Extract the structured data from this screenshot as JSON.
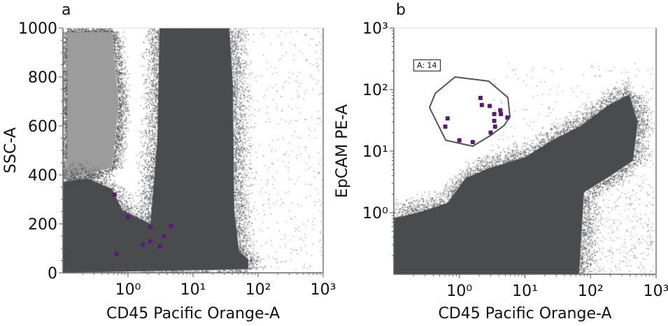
{
  "chart_data": [
    {
      "type": "scatter",
      "panel_label": "a",
      "xlabel": "CD45 Pacific Orange-A",
      "ylabel": "SSC-A",
      "x_scale": "log",
      "y_scale": "linear",
      "xlim": [
        0.1,
        1000
      ],
      "ylim": [
        0,
        1000
      ],
      "x_ticks": [
        {
          "value": 1,
          "label": "10⁰"
        },
        {
          "value": 10,
          "label": "10¹"
        },
        {
          "value": 100,
          "label": "10²"
        },
        {
          "value": 1000,
          "label": "10³"
        }
      ],
      "y_ticks": [
        {
          "value": 0,
          "label": "0"
        },
        {
          "value": 200,
          "label": "200"
        },
        {
          "value": 400,
          "label": "400"
        },
        {
          "value": 600,
          "label": "600"
        },
        {
          "value": 800,
          "label": "800"
        },
        {
          "value": 1000,
          "label": "1000"
        }
      ],
      "background_color": "#4a4b4d",
      "highlight_color": "#5c1a78",
      "highlighted_points": [
        {
          "x": 0.62,
          "y": 319
        },
        {
          "x": 1.0,
          "y": 227
        },
        {
          "x": 2.2,
          "y": 187
        },
        {
          "x": 4.6,
          "y": 190
        },
        {
          "x": 3.6,
          "y": 149
        },
        {
          "x": 2.2,
          "y": 129
        },
        {
          "x": 1.7,
          "y": 115
        },
        {
          "x": 3.1,
          "y": 109
        },
        {
          "x": 0.67,
          "y": 78
        }
      ]
    },
    {
      "type": "scatter",
      "panel_label": "b",
      "xlabel": "CD45 Pacific Orange-A",
      "ylabel": "EpCAM PE-A",
      "x_scale": "log",
      "y_scale": "log",
      "xlim": [
        0.1,
        1000
      ],
      "ylim": [
        0.1,
        1000
      ],
      "x_ticks": [
        {
          "value": 1,
          "label": "10⁰"
        },
        {
          "value": 10,
          "label": "10¹"
        },
        {
          "value": 100,
          "label": "10²"
        },
        {
          "value": 1000,
          "label": "10³"
        }
      ],
      "y_ticks": [
        {
          "value": 1,
          "label": "10⁰"
        },
        {
          "value": 10,
          "label": "10¹"
        },
        {
          "value": 100,
          "label": "10²"
        },
        {
          "value": 1000,
          "label": "10³"
        }
      ],
      "background_color": "#4a4b4d",
      "highlight_color": "#5c1a78",
      "gate": {
        "label": "A: 14",
        "polygon": [
          {
            "x": 0.35,
            "y": 51
          },
          {
            "x": 0.43,
            "y": 87
          },
          {
            "x": 0.86,
            "y": 160
          },
          {
            "x": 2.8,
            "y": 137
          },
          {
            "x": 5.5,
            "y": 74
          },
          {
            "x": 5.9,
            "y": 36
          },
          {
            "x": 4.8,
            "y": 26
          },
          {
            "x": 3.0,
            "y": 18
          },
          {
            "x": 1.6,
            "y": 12
          },
          {
            "x": 0.62,
            "y": 15
          }
        ]
      },
      "highlighted_points": [
        {
          "x": 2.1,
          "y": 73
        },
        {
          "x": 2.2,
          "y": 56
        },
        {
          "x": 2.9,
          "y": 54
        },
        {
          "x": 4.2,
          "y": 46
        },
        {
          "x": 3.4,
          "y": 40
        },
        {
          "x": 4.3,
          "y": 40
        },
        {
          "x": 5.4,
          "y": 35
        },
        {
          "x": 0.66,
          "y": 34
        },
        {
          "x": 3.4,
          "y": 31
        },
        {
          "x": 0.61,
          "y": 25
        },
        {
          "x": 3.5,
          "y": 25
        },
        {
          "x": 3.0,
          "y": 20
        },
        {
          "x": 1.0,
          "y": 15
        },
        {
          "x": 1.6,
          "y": 14
        }
      ]
    }
  ]
}
